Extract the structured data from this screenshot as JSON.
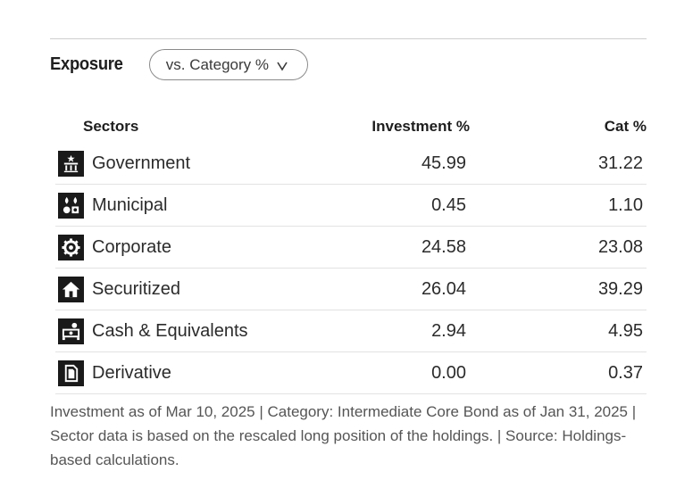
{
  "exposure": {
    "title": "Exposure",
    "dropdown": {
      "selected": "vs. Category %"
    }
  },
  "table": {
    "columns": {
      "sector": "Sectors",
      "investment": "Investment  %",
      "category": "Cat  %"
    },
    "rows": [
      {
        "icon": "government-icon",
        "sector": "Government",
        "investment": "45.99",
        "category": "31.22"
      },
      {
        "icon": "municipal-icon",
        "sector": "Municipal",
        "investment": "0.45",
        "category": "1.10"
      },
      {
        "icon": "corporate-gear-icon",
        "sector": "Corporate",
        "investment": "24.58",
        "category": "23.08"
      },
      {
        "icon": "house-icon",
        "sector": "Securitized",
        "investment": "26.04",
        "category": "39.29"
      },
      {
        "icon": "cash-icon",
        "sector": "Cash & Equivalents",
        "investment": "2.94",
        "category": "4.95"
      },
      {
        "icon": "document-icon",
        "sector": "Derivative",
        "investment": "0.00",
        "category": "0.37"
      }
    ]
  },
  "footnote": {
    "text": "Investment as of Mar 10, 2025 | Category: Intermediate Core Bond as of Jan 31, 2025 | Sector data is based on the rescaled long position of the holdings. | Source: Holdings-based calculations."
  }
}
